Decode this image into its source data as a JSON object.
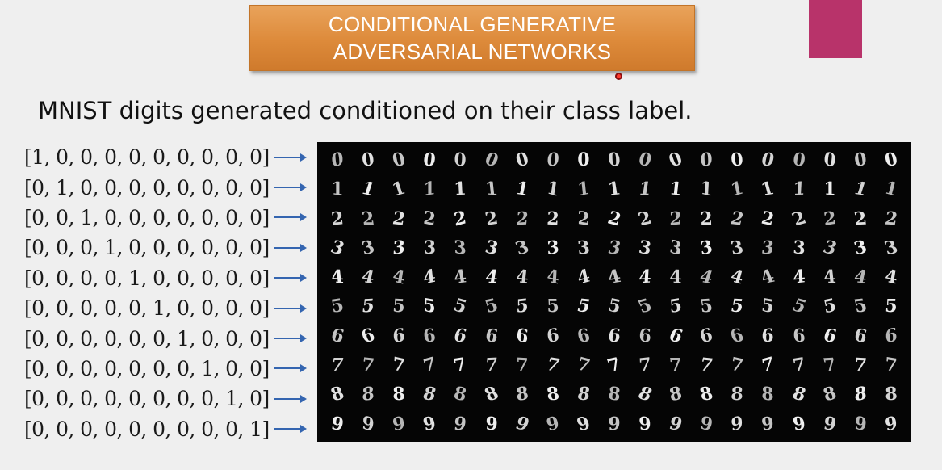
{
  "slide": {
    "title_line1": "CONDITIONAL GENERATIVE",
    "title_line2": "ADVERSARIAL NETWORKS",
    "subtitle": "MNIST digits generated conditioned on their class label.",
    "accent_color": "#dd8a3a",
    "pink_block_color": "#b8336a"
  },
  "labels": [
    "[1, 0, 0, 0, 0, 0, 0, 0, 0, 0]",
    "[0, 1, 0, 0, 0, 0, 0, 0, 0, 0]",
    "[0, 0, 1, 0, 0, 0, 0, 0, 0, 0]",
    "[0, 0, 0, 1, 0, 0, 0, 0, 0, 0]",
    "[0, 0, 0, 0, 1, 0, 0, 0, 0, 0]",
    "[0, 0, 0, 0, 0, 1, 0, 0, 0, 0]",
    "[0, 0, 0, 0, 0, 0, 1, 0, 0, 0]",
    "[0, 0, 0, 0, 0, 0, 0, 1, 0, 0]",
    "[0, 0, 0, 0, 0, 0, 0, 0, 1, 0]",
    "[0, 0, 0, 0, 0, 0, 0, 0, 0, 1]"
  ],
  "digit_grid": {
    "rows": [
      [
        "0",
        "0",
        "0",
        "0",
        "0",
        "0",
        "0",
        "0",
        "0",
        "0",
        "0",
        "0",
        "0",
        "0",
        "0",
        "0",
        "0",
        "0",
        "0"
      ],
      [
        "1",
        "1",
        "1",
        "1",
        "1",
        "1",
        "1",
        "1",
        "1",
        "1",
        "1",
        "1",
        "1",
        "1",
        "1",
        "1",
        "1",
        "1",
        "1"
      ],
      [
        "2",
        "2",
        "2",
        "2",
        "2",
        "2",
        "2",
        "2",
        "2",
        "2",
        "2",
        "2",
        "2",
        "2",
        "2",
        "2",
        "2",
        "2",
        "2"
      ],
      [
        "3",
        "3",
        "3",
        "3",
        "3",
        "3",
        "3",
        "3",
        "3",
        "3",
        "3",
        "3",
        "3",
        "3",
        "3",
        "3",
        "3",
        "3",
        "3"
      ],
      [
        "4",
        "4",
        "4",
        "4",
        "4",
        "4",
        "4",
        "4",
        "4",
        "4",
        "4",
        "4",
        "4",
        "4",
        "4",
        "4",
        "4",
        "4",
        "4"
      ],
      [
        "5",
        "5",
        "5",
        "5",
        "5",
        "5",
        "5",
        "5",
        "5",
        "5",
        "5",
        "5",
        "5",
        "5",
        "5",
        "5",
        "5",
        "5",
        "5"
      ],
      [
        "6",
        "6",
        "6",
        "6",
        "6",
        "6",
        "6",
        "6",
        "6",
        "6",
        "6",
        "6",
        "6",
        "6",
        "6",
        "6",
        "6",
        "6",
        "6"
      ],
      [
        "7",
        "7",
        "7",
        "7",
        "7",
        "7",
        "7",
        "7",
        "7",
        "7",
        "7",
        "7",
        "7",
        "7",
        "7",
        "7",
        "7",
        "7",
        "7"
      ],
      [
        "8",
        "8",
        "8",
        "8",
        "8",
        "8",
        "8",
        "8",
        "8",
        "8",
        "8",
        "8",
        "8",
        "8",
        "8",
        "8",
        "8",
        "8",
        "8"
      ],
      [
        "9",
        "9",
        "9",
        "9",
        "9",
        "9",
        "9",
        "9",
        "9",
        "9",
        "9",
        "9",
        "9",
        "9",
        "9",
        "9",
        "9",
        "9",
        "9"
      ]
    ]
  }
}
